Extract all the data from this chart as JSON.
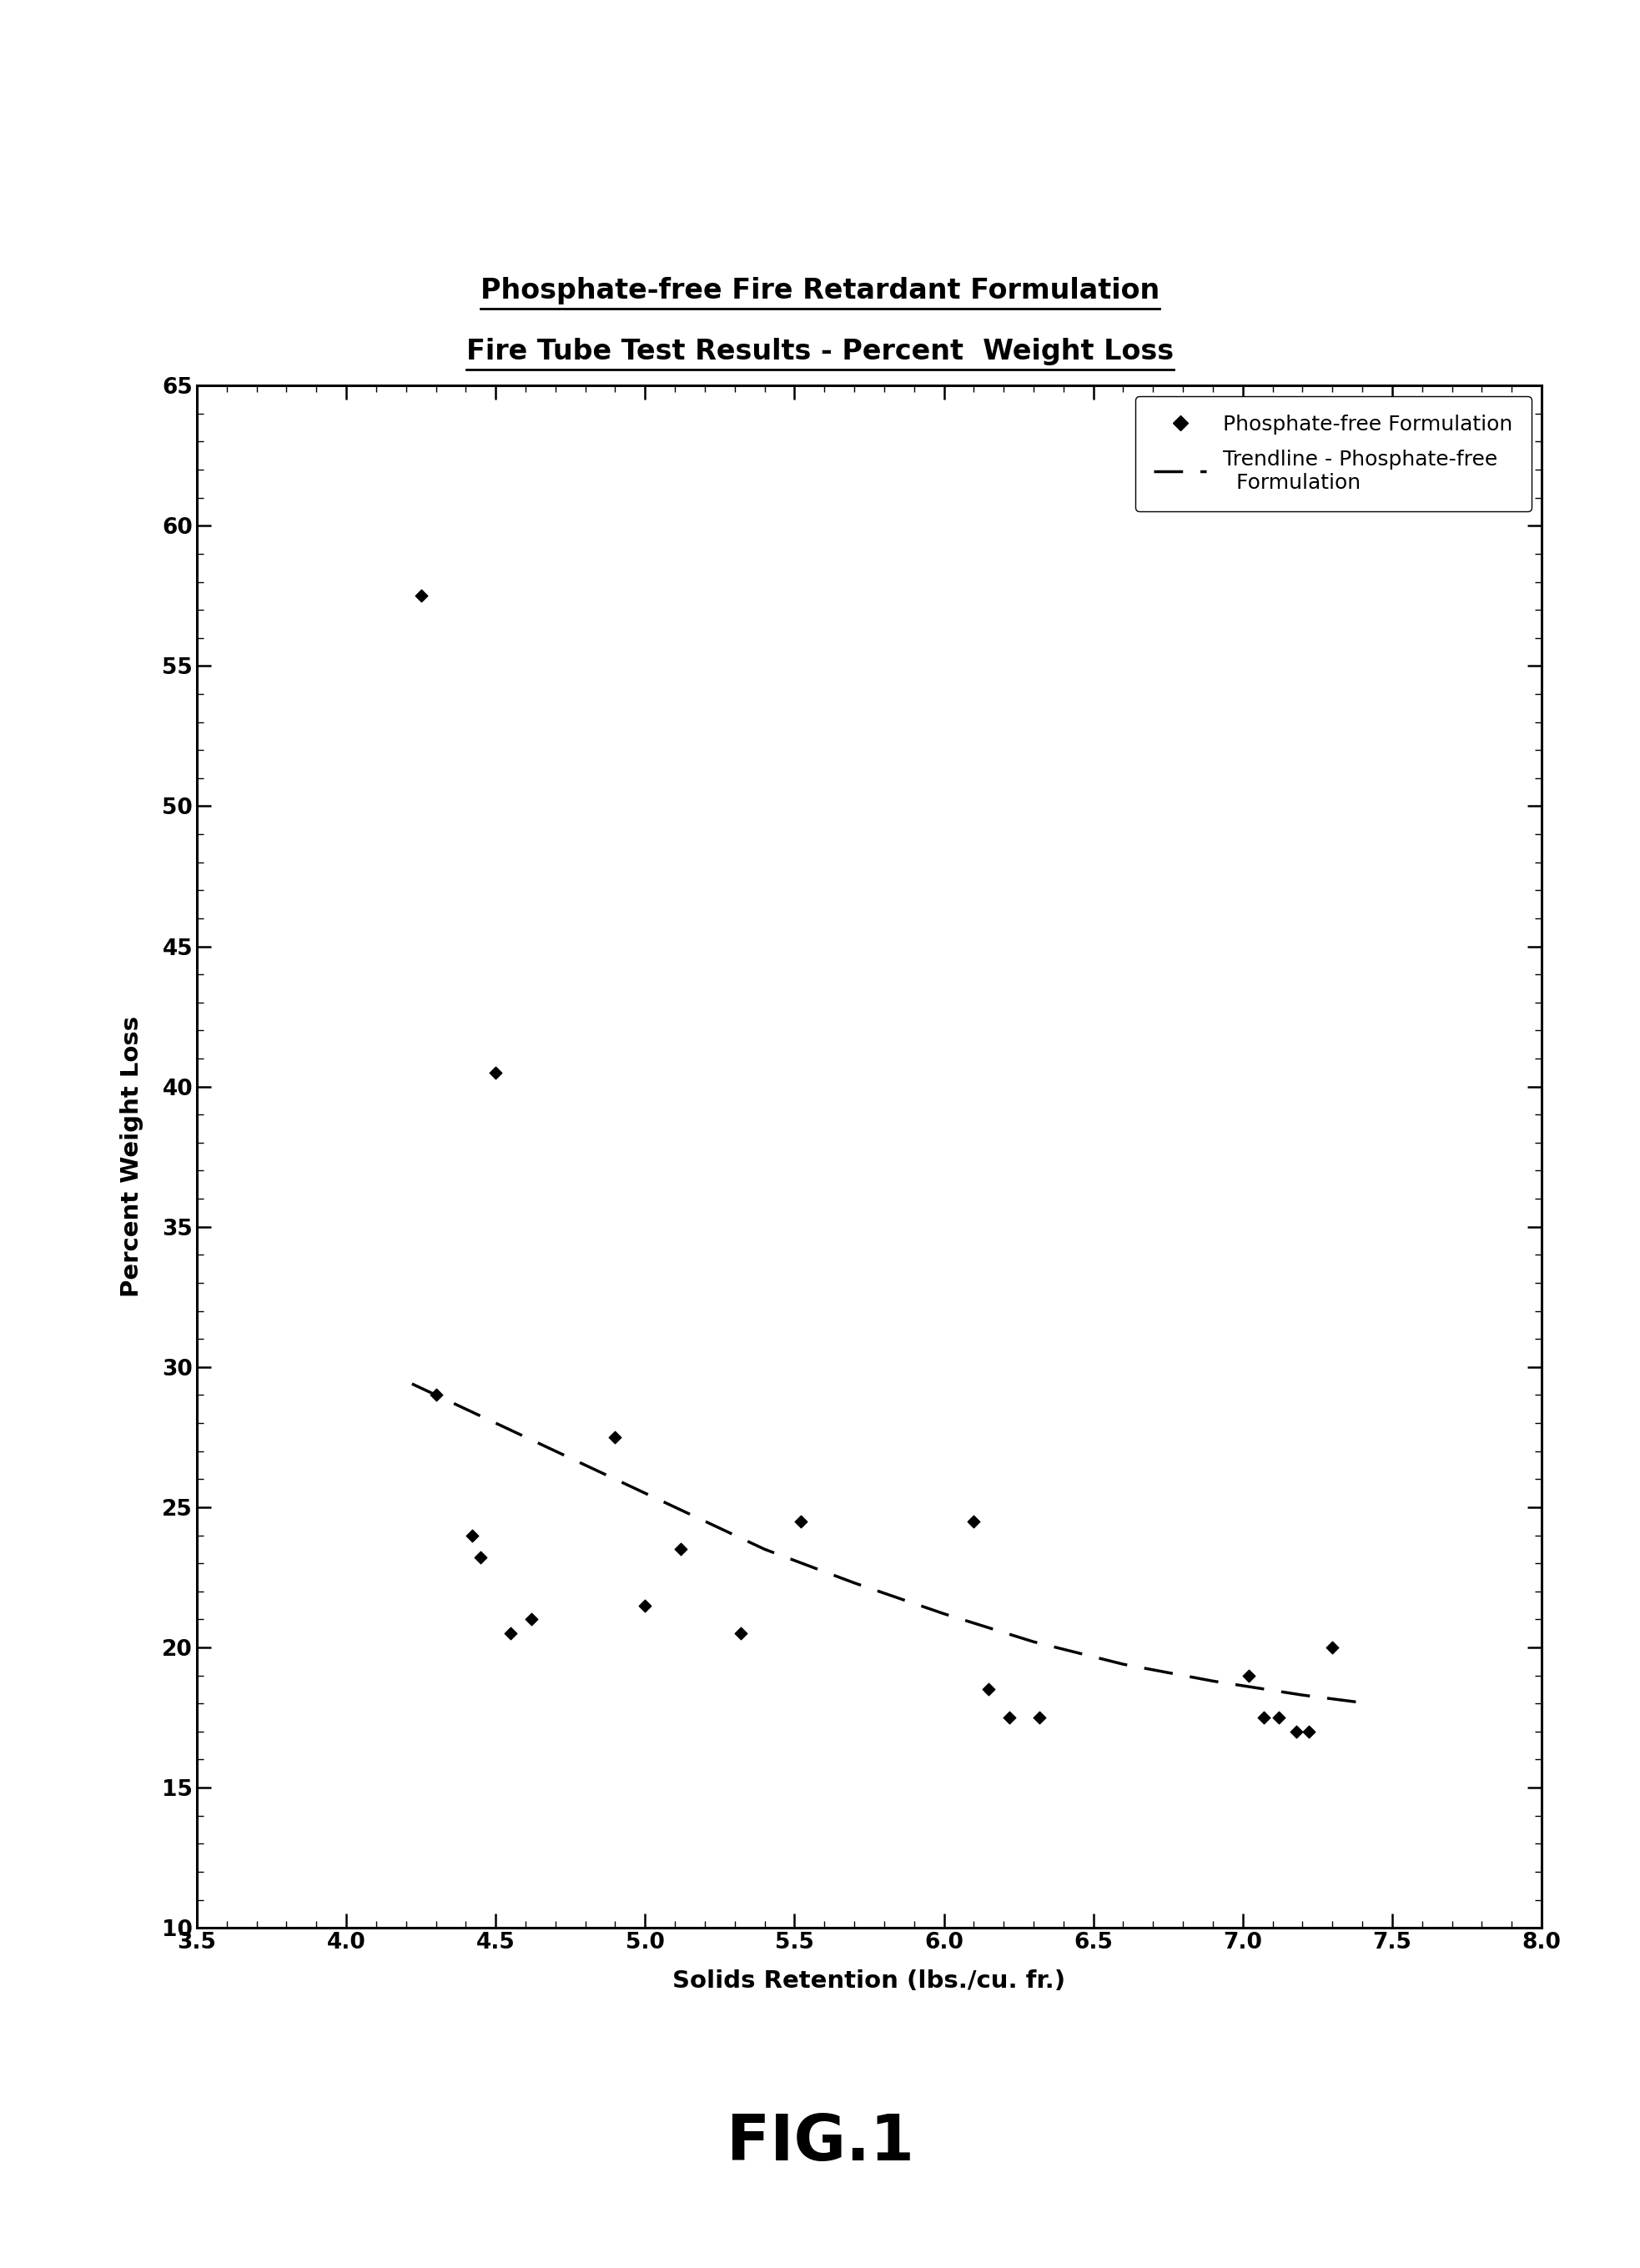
{
  "title_line1": "Phosphate-free Fire Retardant Formulation",
  "title_line2": "Fire Tube Test Results - Percent  Weight Loss",
  "xlabel": "Solids Retention (lbs./cu. fr.)",
  "ylabel": "Percent Weight Loss",
  "xlim": [
    3.5,
    8.0
  ],
  "ylim": [
    10,
    65
  ],
  "xticks": [
    3.5,
    4.0,
    4.5,
    5.0,
    5.5,
    6.0,
    6.5,
    7.0,
    7.5,
    8.0
  ],
  "yticks": [
    10,
    15,
    20,
    25,
    30,
    35,
    40,
    45,
    50,
    55,
    60,
    65
  ],
  "scatter_x": [
    4.25,
    4.3,
    4.42,
    4.45,
    4.5,
    4.55,
    4.62,
    4.9,
    5.0,
    5.12,
    5.32,
    5.52,
    6.1,
    6.15,
    6.22,
    6.32,
    7.02,
    7.07,
    7.12,
    7.18,
    7.22,
    7.3
  ],
  "scatter_y": [
    57.5,
    29.0,
    24.0,
    23.2,
    40.5,
    20.5,
    21.0,
    27.5,
    21.5,
    23.5,
    20.5,
    24.5,
    24.5,
    18.5,
    17.5,
    17.5,
    19.0,
    17.5,
    17.5,
    17.0,
    17.0,
    20.0
  ],
  "trendline_x": [
    4.22,
    4.5,
    4.8,
    5.1,
    5.4,
    5.7,
    6.0,
    6.3,
    6.6,
    6.9,
    7.2,
    7.42
  ],
  "trendline_y": [
    29.4,
    28.0,
    26.5,
    25.0,
    23.5,
    22.3,
    21.2,
    20.2,
    19.4,
    18.8,
    18.3,
    18.0
  ],
  "legend_label_scatter": "Phosphate-free Formulation",
  "legend_label_trend": "Trendline - Phosphate-free\n  Formulation",
  "fig_label": "FIG.1",
  "bg_color": "#ffffff",
  "text_color": "#000000",
  "title_fontsize": 24,
  "axis_label_fontsize": 21,
  "tick_fontsize": 19,
  "legend_fontsize": 18
}
